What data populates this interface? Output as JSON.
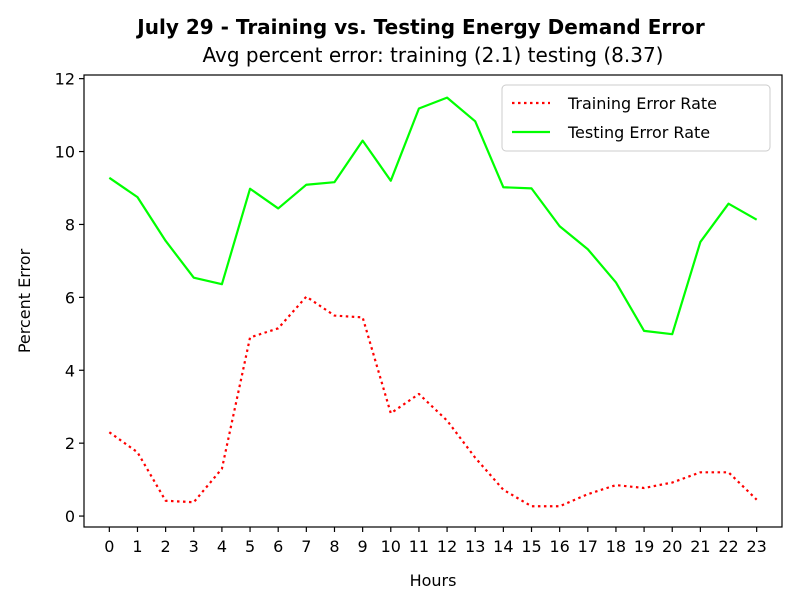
{
  "chart_data": {
    "type": "line",
    "title": "July 29 - Training vs. Testing Energy Demand Error",
    "subtitle": "Avg percent error: training (2.1) testing (8.37)",
    "xlabel": "Hours",
    "ylabel": "Percent Error",
    "x": [
      0,
      1,
      2,
      3,
      4,
      5,
      6,
      7,
      8,
      9,
      10,
      11,
      12,
      13,
      14,
      15,
      16,
      17,
      18,
      19,
      20,
      21,
      22,
      23
    ],
    "x_tick_labels": [
      "0",
      "1",
      "2",
      "3",
      "4",
      "5",
      "6",
      "7",
      "8",
      "9",
      "10",
      "11",
      "12",
      "13",
      "14",
      "15",
      "16",
      "17",
      "18",
      "19",
      "20",
      "21",
      "22",
      "23"
    ],
    "y_ticks": [
      0,
      2,
      4,
      6,
      8,
      10,
      12
    ],
    "y_tick_labels": [
      "0",
      "2",
      "4",
      "6",
      "8",
      "10",
      "12"
    ],
    "xlim": [
      -0.9,
      23.9
    ],
    "ylim": [
      -0.3,
      12.1
    ],
    "legend_position": "top-right",
    "grid": false,
    "series": [
      {
        "name": "Training Error Rate",
        "color": "#ff0000",
        "style": "dotted",
        "values": [
          2.3,
          1.75,
          0.42,
          0.38,
          1.3,
          4.9,
          5.15,
          6.02,
          5.5,
          5.45,
          2.82,
          3.35,
          2.62,
          1.6,
          0.72,
          0.27,
          0.27,
          0.6,
          0.85,
          0.77,
          0.92,
          1.2,
          1.2,
          0.45
        ]
      },
      {
        "name": "Testing Error Rate",
        "color": "#00ff00",
        "style": "solid",
        "values": [
          9.28,
          8.75,
          7.55,
          6.54,
          6.36,
          8.98,
          8.44,
          9.09,
          9.16,
          10.3,
          9.2,
          11.18,
          11.48,
          10.83,
          9.02,
          8.99,
          7.95,
          7.32,
          6.41,
          5.08,
          4.99,
          7.52,
          8.57,
          8.13
        ]
      }
    ]
  }
}
